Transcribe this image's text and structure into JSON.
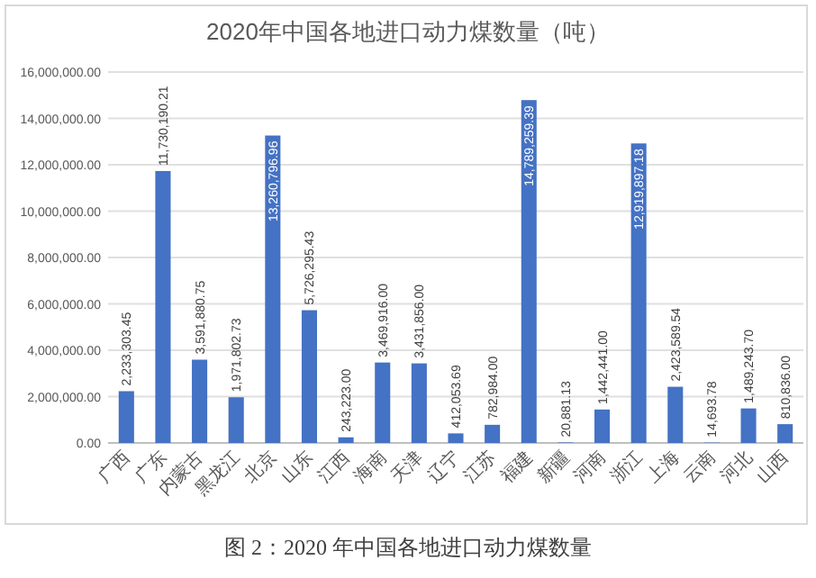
{
  "chart_data": {
    "type": "bar",
    "title": "2020年中国各地进口动力煤数量（吨）",
    "categories": [
      "广西",
      "广东",
      "内蒙古",
      "黑龙江",
      "北京",
      "山东",
      "江西",
      "海南",
      "天津",
      "辽宁",
      "江苏",
      "福建",
      "新疆",
      "河南",
      "浙江",
      "上海",
      "云南",
      "河北",
      "山西"
    ],
    "values": [
      2233303.45,
      11730190.21,
      3591880.75,
      1971802.73,
      13260796.96,
      5726295.43,
      243223.0,
      3469916.0,
      3431856.0,
      412053.69,
      782984.0,
      14789259.39,
      20881.13,
      1442441.0,
      12919897.18,
      2423589.54,
      14693.78,
      1489243.7,
      810836.0
    ],
    "value_labels": [
      "2,233,303.45",
      "11,730,190.21",
      "3,591,880.75",
      "1,971,802.73",
      "13,260,796.96",
      "5,726,295.43",
      "243,223.00",
      "3,469,916.00",
      "3,431,856.00",
      "412,053.69",
      "782,984.00",
      "14,789,259.39",
      "20,881.13",
      "1,442,441.00",
      "12,919,897.18",
      "2,423,589.54",
      "14,693.78",
      "1,489,243.70",
      "810,836.00"
    ],
    "color": "#4472c4",
    "ylim": [
      0,
      16000000
    ],
    "yticks": [
      {
        "value": 0,
        "label": "0.00"
      },
      {
        "value": 2000000,
        "label": "2,000,000.00"
      },
      {
        "value": 4000000,
        "label": "4,000,000.00"
      },
      {
        "value": 6000000,
        "label": "6,000,000.00"
      },
      {
        "value": 8000000,
        "label": "8,000,000.00"
      },
      {
        "value": 10000000,
        "label": "10,000,000.00"
      },
      {
        "value": 12000000,
        "label": "12,000,000.00"
      },
      {
        "value": 14000000,
        "label": "14,000,000.00"
      },
      {
        "value": 16000000,
        "label": "16,000,000.00"
      }
    ],
    "grid": "y",
    "annotations": [
      "图 2：2020 年中国各地进口动力煤数量"
    ]
  }
}
